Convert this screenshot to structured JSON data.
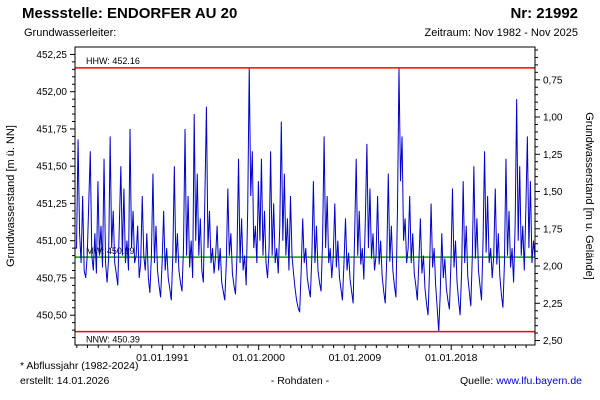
{
  "header": {
    "station_label": "Messstelle: ENDORFER AU 20",
    "number_label": "Nr: 21992",
    "aquifer_label": "Grundwasserleiter:",
    "period_label": "Zeitraum: Nov 1982 - Nov 2025"
  },
  "footer": {
    "note1": "* Abflussjahr (1982-2024)",
    "note2": "erstellt: 14.01.2026",
    "center": "- Rohdaten -",
    "source_label": "Quelle:",
    "source_link": "www.lfu.bayern.de"
  },
  "colors": {
    "series": "#0000cc",
    "extreme_line": "#ff0000",
    "mean_line": "#00a000",
    "axis": "#000000",
    "link": "#0000e0"
  },
  "chart_data": {
    "type": "line",
    "title": "",
    "ylabel_left": "Grundwasserstand [m ü. NN]",
    "ylabel_right": "Grundwasserstand [m u. Gelände]",
    "x_start": 1982.83,
    "x_end": 2025.83,
    "x_ticks": [
      {
        "year": 1991.0,
        "label": "01.01.1991"
      },
      {
        "year": 2000.0,
        "label": "01.01.2000"
      },
      {
        "year": 2009.0,
        "label": "01.01.2009"
      },
      {
        "year": 2018.0,
        "label": "01.01.2018"
      }
    ],
    "y_left": {
      "min": 450.3,
      "max": 452.3,
      "ticks": [
        {
          "v": 452.25,
          "label": "452,25"
        },
        {
          "v": 452.0,
          "label": "452,00"
        },
        {
          "v": 451.75,
          "label": "451,75"
        },
        {
          "v": 451.5,
          "label": "451,50"
        },
        {
          "v": 451.25,
          "label": "451,25"
        },
        {
          "v": 451.0,
          "label": "451,00"
        },
        {
          "v": 450.75,
          "label": "450,75"
        },
        {
          "v": 450.5,
          "label": "450,50"
        }
      ]
    },
    "y_right": {
      "ground_elevation": 452.83,
      "ticks": [
        {
          "v": 0.75,
          "label": "0,75"
        },
        {
          "v": 1.0,
          "label": "1,00"
        },
        {
          "v": 1.25,
          "label": "1,25"
        },
        {
          "v": 1.5,
          "label": "1,50"
        },
        {
          "v": 1.75,
          "label": "1,75"
        },
        {
          "v": 2.0,
          "label": "2,00"
        },
        {
          "v": 2.25,
          "label": "2,25"
        },
        {
          "v": 2.5,
          "label": "2,50"
        }
      ]
    },
    "reference_lines": [
      {
        "name": "HHW",
        "label": "HHW: 452.16",
        "value": 452.16,
        "color": "#ff0000",
        "layer": "top"
      },
      {
        "name": "MW",
        "label": "MW: 450.89",
        "value": 450.89,
        "color": "#00a000",
        "layer": "bottom"
      },
      {
        "name": "NNW",
        "label": "NNW: 450.39",
        "value": 450.39,
        "color": "#ff0000",
        "layer": "top"
      }
    ],
    "series": [
      {
        "name": "Grundwasserstand Rohdaten",
        "color": "#0000cc",
        "values": [
          450.95,
          450.95,
          451.68,
          451.05,
          450.85,
          451.3,
          450.8,
          450.75,
          450.9,
          451.25,
          451.6,
          450.9,
          450.8,
          451.05,
          450.78,
          451.4,
          450.9,
          451.1,
          450.82,
          451.55,
          450.85,
          450.72,
          450.88,
          451.7,
          450.95,
          451.2,
          450.85,
          450.78,
          450.7,
          451.1,
          451.5,
          450.9,
          451.35,
          450.85,
          451.0,
          450.8,
          451.75,
          450.95,
          451.2,
          450.85,
          450.9,
          451.1,
          450.75,
          450.85,
          451.3,
          450.9,
          450.8,
          451.05,
          450.75,
          450.65,
          450.9,
          451.45,
          450.85,
          451.1,
          450.8,
          450.7,
          450.62,
          450.85,
          451.2,
          450.8,
          450.95,
          450.75,
          450.68,
          450.6,
          450.9,
          451.5,
          450.85,
          451.05,
          450.8,
          450.72,
          450.66,
          450.95,
          451.75,
          450.9,
          451.3,
          450.82,
          451.0,
          450.75,
          451.85,
          451.0,
          451.45,
          450.9,
          451.15,
          450.8,
          450.72,
          451.3,
          451.9,
          450.95,
          451.2,
          450.85,
          450.95,
          450.78,
          450.9,
          451.1,
          450.8,
          450.95,
          450.72,
          450.66,
          450.6,
          450.85,
          451.35,
          450.9,
          451.05,
          450.78,
          450.7,
          450.64,
          450.9,
          451.55,
          450.85,
          451.15,
          450.8,
          450.9,
          450.7,
          451.2,
          452.16,
          451.3,
          451.6,
          450.95,
          451.1,
          450.85,
          451.4,
          451.0,
          451.55,
          450.9,
          451.2,
          450.85,
          450.75,
          450.95,
          451.6,
          450.9,
          451.25,
          450.85,
          450.95,
          450.78,
          451.1,
          451.8,
          451.0,
          451.45,
          450.9,
          451.15,
          450.8,
          451.3,
          450.9,
          450.78,
          450.68,
          450.6,
          450.55,
          450.52,
          450.8,
          451.15,
          450.85,
          450.95,
          450.75,
          450.68,
          450.62,
          450.9,
          451.4,
          450.85,
          451.1,
          450.8,
          450.72,
          450.66,
          451.0,
          451.7,
          450.95,
          451.3,
          450.85,
          450.95,
          450.75,
          450.9,
          451.25,
          450.82,
          451.0,
          450.76,
          450.68,
          450.6,
          450.85,
          451.15,
          450.8,
          450.92,
          450.74,
          450.66,
          450.58,
          451.05,
          451.55,
          450.9,
          451.2,
          450.84,
          450.95,
          450.74,
          451.15,
          451.65,
          450.95,
          451.35,
          450.88,
          451.05,
          450.8,
          450.9,
          451.3,
          450.84,
          451.0,
          450.76,
          450.66,
          450.58,
          450.88,
          451.45,
          450.86,
          451.1,
          450.8,
          450.7,
          450.62,
          451.2,
          452.16,
          451.4,
          451.7,
          451.0,
          451.15,
          450.85,
          450.95,
          451.3,
          450.85,
          451.05,
          450.78,
          450.7,
          450.6,
          450.85,
          451.15,
          450.78,
          450.9,
          450.68,
          450.58,
          450.5,
          450.8,
          451.25,
          450.82,
          450.95,
          450.7,
          450.55,
          450.39,
          450.65,
          451.05,
          450.75,
          450.88,
          450.68,
          450.6,
          450.54,
          450.85,
          451.35,
          450.82,
          451.0,
          450.72,
          450.6,
          450.5,
          450.8,
          451.4,
          450.85,
          451.1,
          450.76,
          450.66,
          450.56,
          450.9,
          451.5,
          450.88,
          451.15,
          450.8,
          450.7,
          450.6,
          451.0,
          451.6,
          450.92,
          451.3,
          450.85,
          450.95,
          450.75,
          450.9,
          451.35,
          450.84,
          451.05,
          450.76,
          450.64,
          450.55,
          450.85,
          451.55,
          450.9,
          451.2,
          450.82,
          450.95,
          450.72,
          451.1,
          451.95,
          451.0,
          451.5,
          450.9,
          451.1,
          450.8,
          451.2,
          451.7,
          450.95,
          451.4,
          450.85,
          451.0,
          450.88
        ]
      }
    ]
  }
}
